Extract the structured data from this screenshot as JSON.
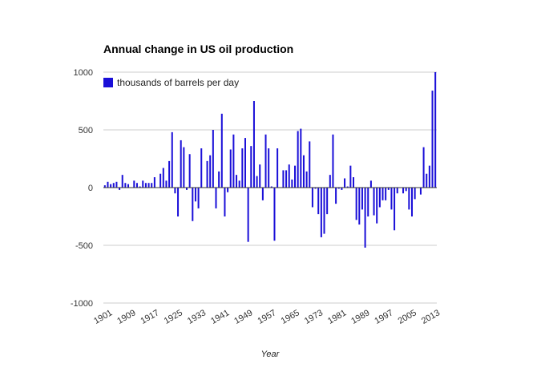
{
  "chart_data": {
    "type": "bar",
    "title": "Annual change in US oil production",
    "xlabel": "Year",
    "ylabel": "",
    "ylim": [
      -1000,
      1000
    ],
    "yticks": [
      -1000,
      -500,
      0,
      500,
      1000
    ],
    "ytick_labels": [
      "-1000",
      "-500",
      "0",
      "500",
      "1000"
    ],
    "xtick_labels": [
      "1901",
      "1909",
      "1917",
      "1925",
      "1933",
      "1941",
      "1949",
      "1957",
      "1965",
      "1973",
      "1981",
      "1989",
      "1997",
      "2005",
      "2013"
    ],
    "grid": true,
    "legend_position": "top-left",
    "color": "#1a0fd8",
    "series": [
      {
        "name": "thousands of barrels per day",
        "x": [
          1901,
          1902,
          1903,
          1904,
          1905,
          1906,
          1907,
          1908,
          1909,
          1910,
          1911,
          1912,
          1913,
          1914,
          1915,
          1916,
          1917,
          1918,
          1919,
          1920,
          1921,
          1922,
          1923,
          1924,
          1925,
          1926,
          1927,
          1928,
          1929,
          1930,
          1931,
          1932,
          1933,
          1934,
          1935,
          1936,
          1937,
          1938,
          1939,
          1940,
          1941,
          1942,
          1943,
          1944,
          1945,
          1946,
          1947,
          1948,
          1949,
          1950,
          1951,
          1952,
          1953,
          1954,
          1955,
          1956,
          1957,
          1958,
          1959,
          1960,
          1961,
          1962,
          1963,
          1964,
          1965,
          1966,
          1967,
          1968,
          1969,
          1970,
          1971,
          1972,
          1973,
          1974,
          1975,
          1976,
          1977,
          1978,
          1979,
          1980,
          1981,
          1982,
          1983,
          1984,
          1985,
          1986,
          1987,
          1988,
          1989,
          1990,
          1991,
          1992,
          1993,
          1994,
          1995,
          1996,
          1997,
          1998,
          1999,
          2000,
          2001,
          2002,
          2003,
          2004,
          2005,
          2006,
          2007,
          2008,
          2009,
          2010,
          2011,
          2012,
          2013,
          2014
        ],
        "values": [
          20,
          50,
          30,
          40,
          50,
          -20,
          110,
          40,
          30,
          0,
          60,
          40,
          10,
          60,
          40,
          40,
          40,
          90,
          0,
          120,
          170,
          60,
          230,
          480,
          -50,
          -250,
          410,
          350,
          -20,
          290,
          -290,
          -120,
          -180,
          340,
          0,
          230,
          280,
          500,
          -180,
          140,
          640,
          -250,
          -40,
          330,
          460,
          110,
          60,
          340,
          430,
          -470,
          360,
          750,
          100,
          200,
          -110,
          460,
          340,
          10,
          -460,
          340,
          0,
          150,
          150,
          200,
          70,
          190,
          490,
          510,
          280,
          140,
          400,
          -170,
          -10,
          -230,
          -430,
          -400,
          -230,
          110,
          460,
          -140,
          -10,
          -20,
          80,
          10,
          190,
          90,
          -280,
          -320,
          -190,
          -520,
          -250,
          60,
          -240,
          -310,
          -170,
          -110,
          -110,
          -20,
          -190,
          -370,
          -50,
          0,
          -50,
          -30,
          -190,
          -250,
          -100,
          0,
          -60,
          350,
          120,
          190,
          840,
          1000
        ]
      }
    ]
  }
}
